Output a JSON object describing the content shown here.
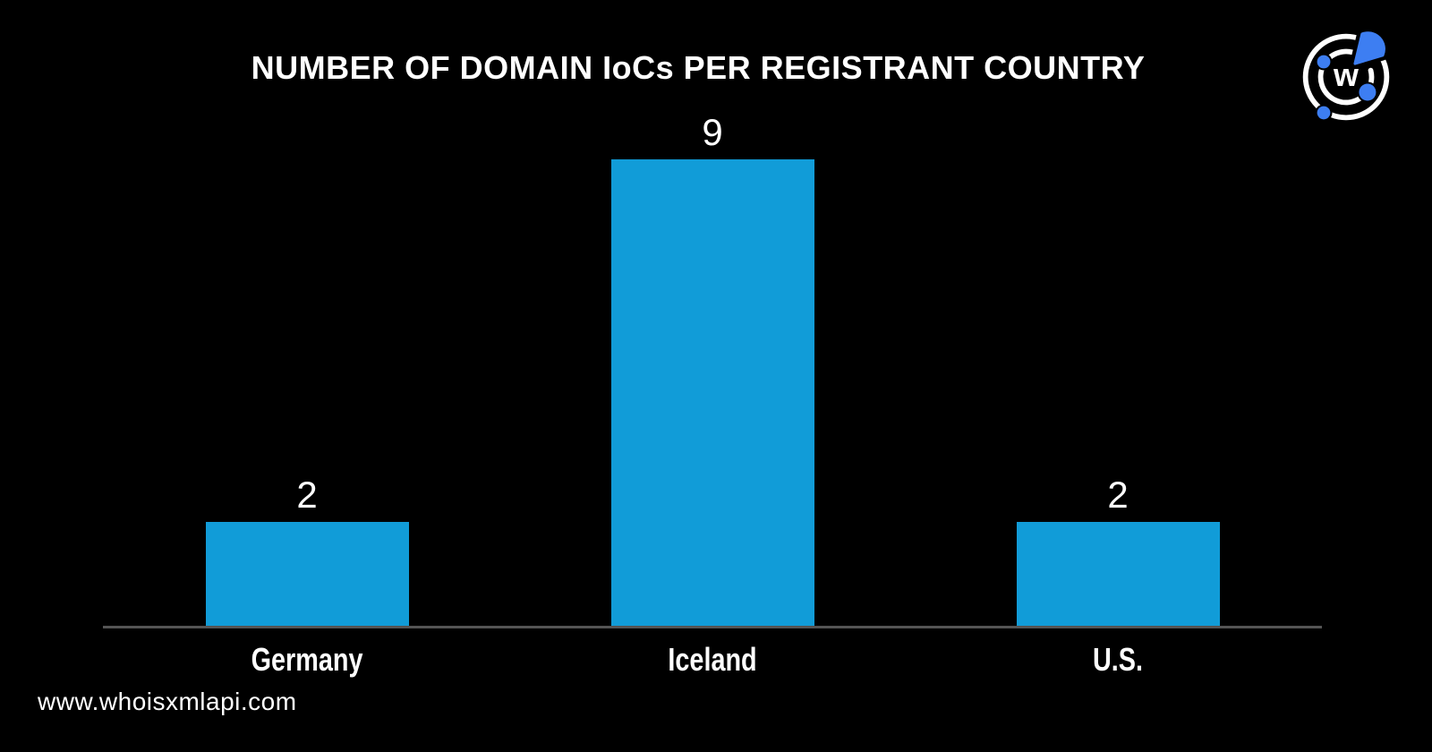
{
  "page": {
    "background": "#000000",
    "footer_url": "www.whoisxmlapi.com",
    "text_color": "#FFFFFF",
    "logo": {
      "name": "whoisxmlapi-logo",
      "letter": "w",
      "ring_color": "#FFFFFF",
      "accent_blue": "#3D7EF2"
    }
  },
  "chart_data": {
    "type": "bar",
    "title": "NUMBER OF DOMAIN IoCs PER REGISTRANT COUNTRY",
    "categories": [
      "Germany",
      "Iceland",
      "U.S."
    ],
    "values": [
      2,
      9,
      2
    ],
    "ylim": [
      0,
      9
    ],
    "bar_color": "#119CD8",
    "axis_line_color": "#545454",
    "value_label_color": "#FFFFFF",
    "grid": false,
    "legend": false,
    "value_labels_position": "above bars",
    "xlabel": "",
    "ylabel": ""
  }
}
